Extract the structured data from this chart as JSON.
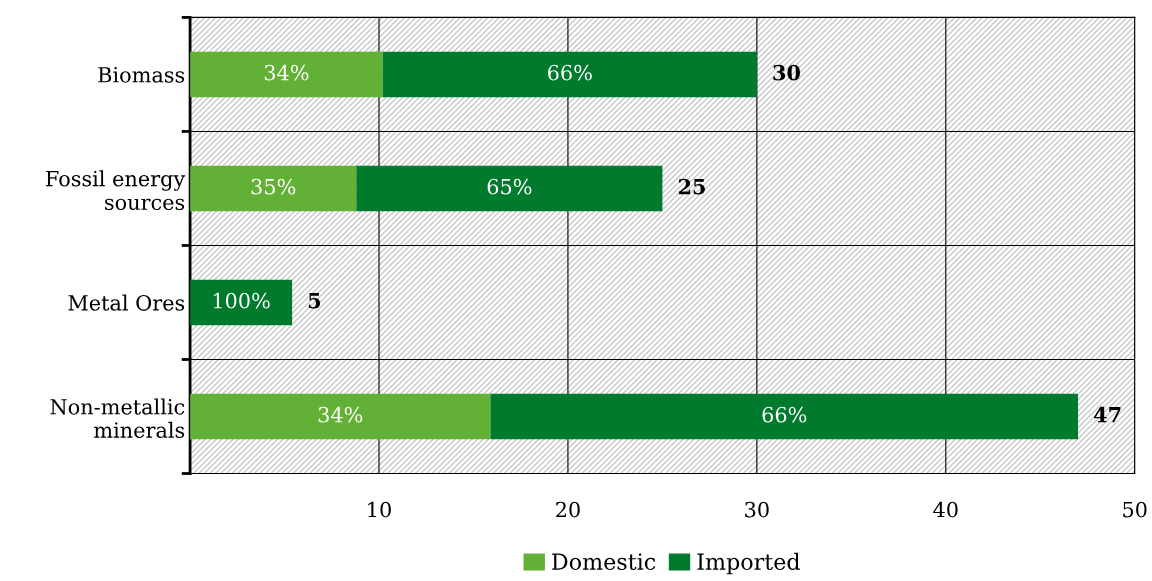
{
  "chart_data": {
    "type": "bar",
    "orientation": "horizontal",
    "stacked": true,
    "categories": [
      "Biomass",
      "Fossil energy\nsources",
      "Metal Ores",
      "Non-metallic\nminerals"
    ],
    "series": [
      {
        "name": "Domestic",
        "color": "#62b036",
        "values": [
          10.2,
          8.8,
          0,
          15.9
        ]
      },
      {
        "name": "Imported",
        "color": "#007a2d",
        "values": [
          19.8,
          16.2,
          5.4,
          31.1
        ]
      }
    ],
    "annotations": [
      "34%",
      "66%",
      "35%",
      "65%",
      "100%",
      "34%",
      "66%"
    ],
    "totals": [
      "30",
      "25",
      "5",
      "47"
    ],
    "xlim": [
      0,
      50
    ],
    "xticks": [
      {
        "value": 0,
        "label": null
      },
      10,
      20,
      30,
      40,
      50
    ],
    "grid": true,
    "legend": "bottom"
  }
}
